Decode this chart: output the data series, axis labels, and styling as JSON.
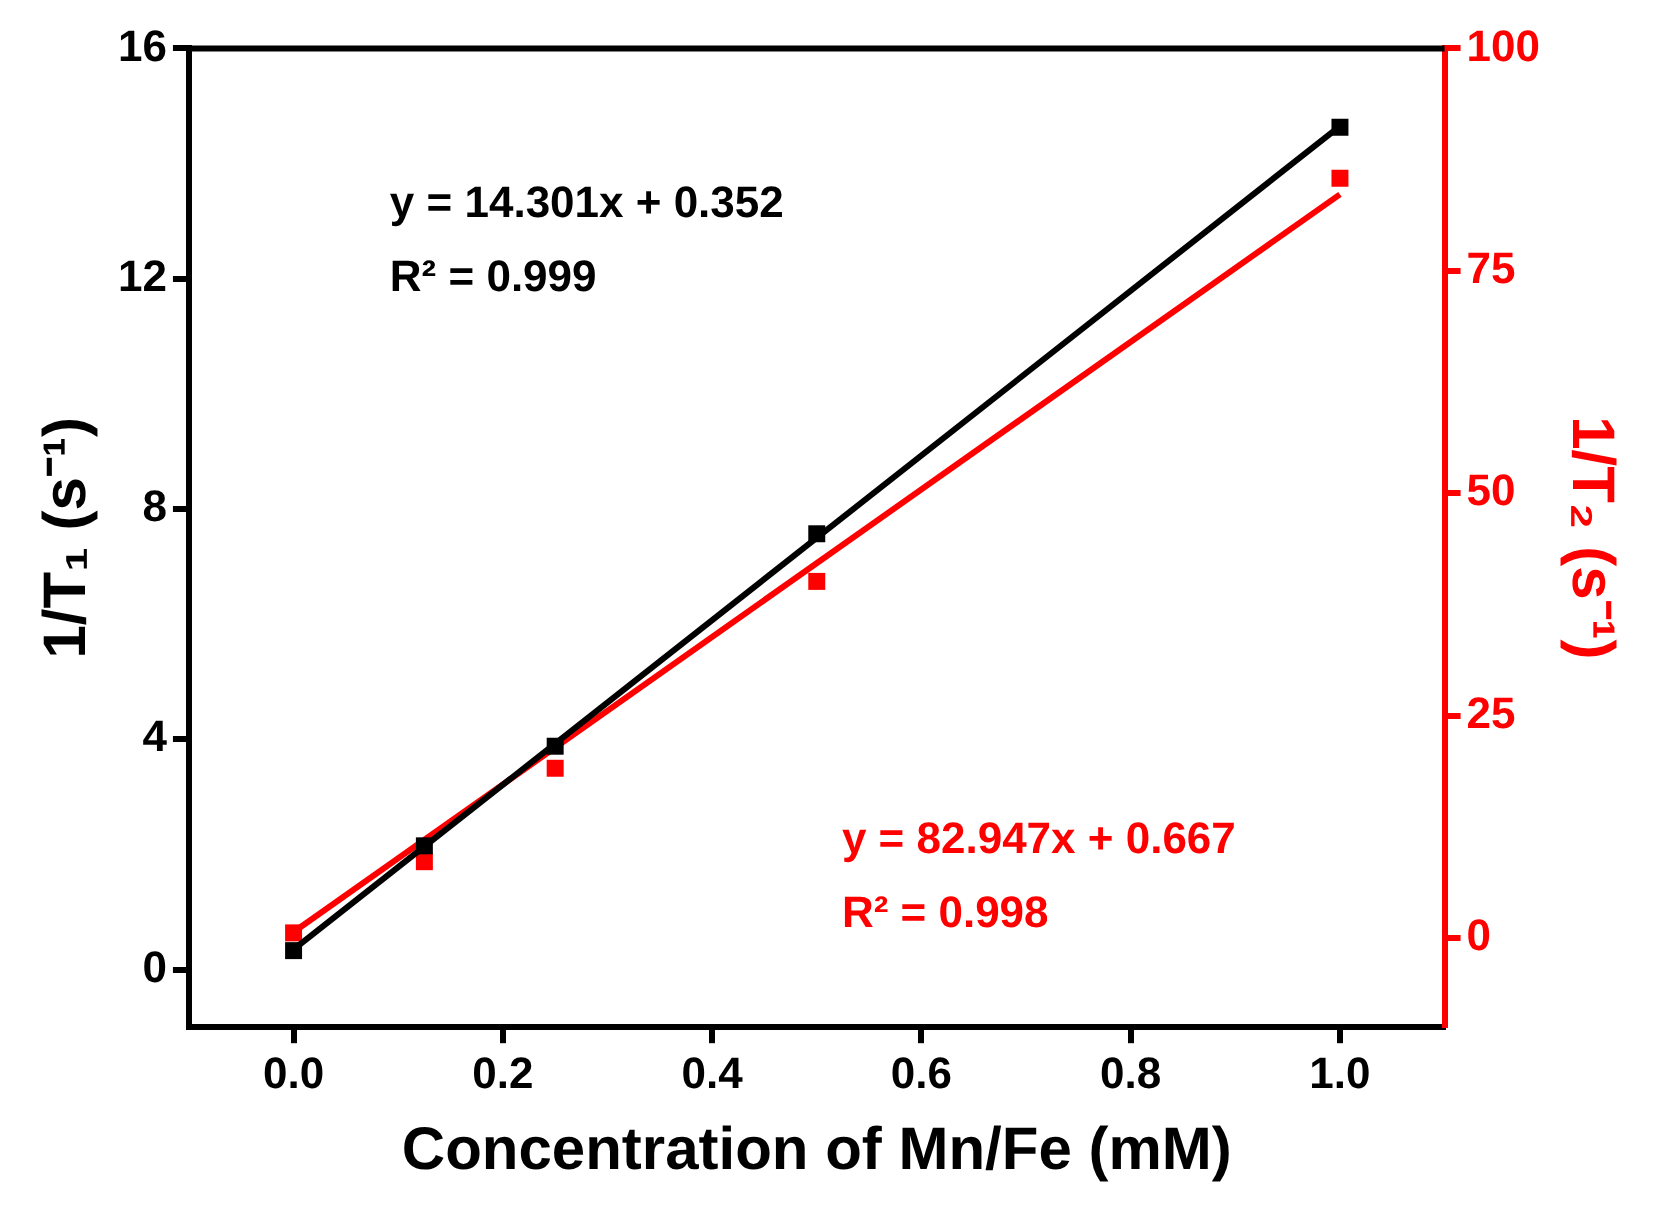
{
  "chart_data": {
    "type": "scatter",
    "xlabel": "Concentration of Mn/Fe (mM)",
    "ylabel": "1/T₁ (s⁻¹)",
    "y2label": "1/T₂ (s⁻¹)",
    "xlim": [
      -0.1,
      1.1
    ],
    "xticks": [
      {
        "value": 0,
        "label": "0.0"
      },
      {
        "value": 0.2,
        "label": "0.2"
      },
      {
        "value": 0.4,
        "label": "0.4"
      },
      {
        "value": 0.6,
        "label": "0.6"
      },
      {
        "value": 0.8,
        "label": "0.8"
      },
      {
        "value": 1,
        "label": "1.0"
      }
    ],
    "ylim": [
      -1,
      16
    ],
    "yticks": [
      0,
      4,
      8,
      12,
      16
    ],
    "y2lim": [
      -10,
      100
    ],
    "y2ticks": [
      0,
      25,
      50,
      75,
      100
    ],
    "grid": false,
    "legend": false,
    "marker": "square",
    "series": [
      {
        "color": "#000000",
        "x": [
          0,
          0.125,
          0.25,
          0.5,
          1
        ],
        "values": [
          0.33,
          2.15,
          3.88,
          7.57,
          14.63
        ]
      },
      {
        "type": "line",
        "marker": "none",
        "color": "#000000",
        "x": [
          0,
          1
        ],
        "values": [
          0.35,
          14.65
        ]
      },
      {
        "color": "#ff0000",
        "axis": "y2",
        "x": [
          0,
          0.125,
          0.25,
          0.5,
          1
        ],
        "values": [
          0.6,
          8.6,
          19.1,
          40.1,
          85.4
        ]
      },
      {
        "type": "line",
        "marker": "none",
        "color": "#ff0000",
        "axis": "y2",
        "x": [
          0,
          1
        ],
        "values": [
          0.7,
          83.6
        ]
      }
    ],
    "annotations": [
      "y = 14.301x + 0.352",
      "R² = 0.999",
      "y = 82.947x + 0.667",
      "R² = 0.998"
    ]
  }
}
